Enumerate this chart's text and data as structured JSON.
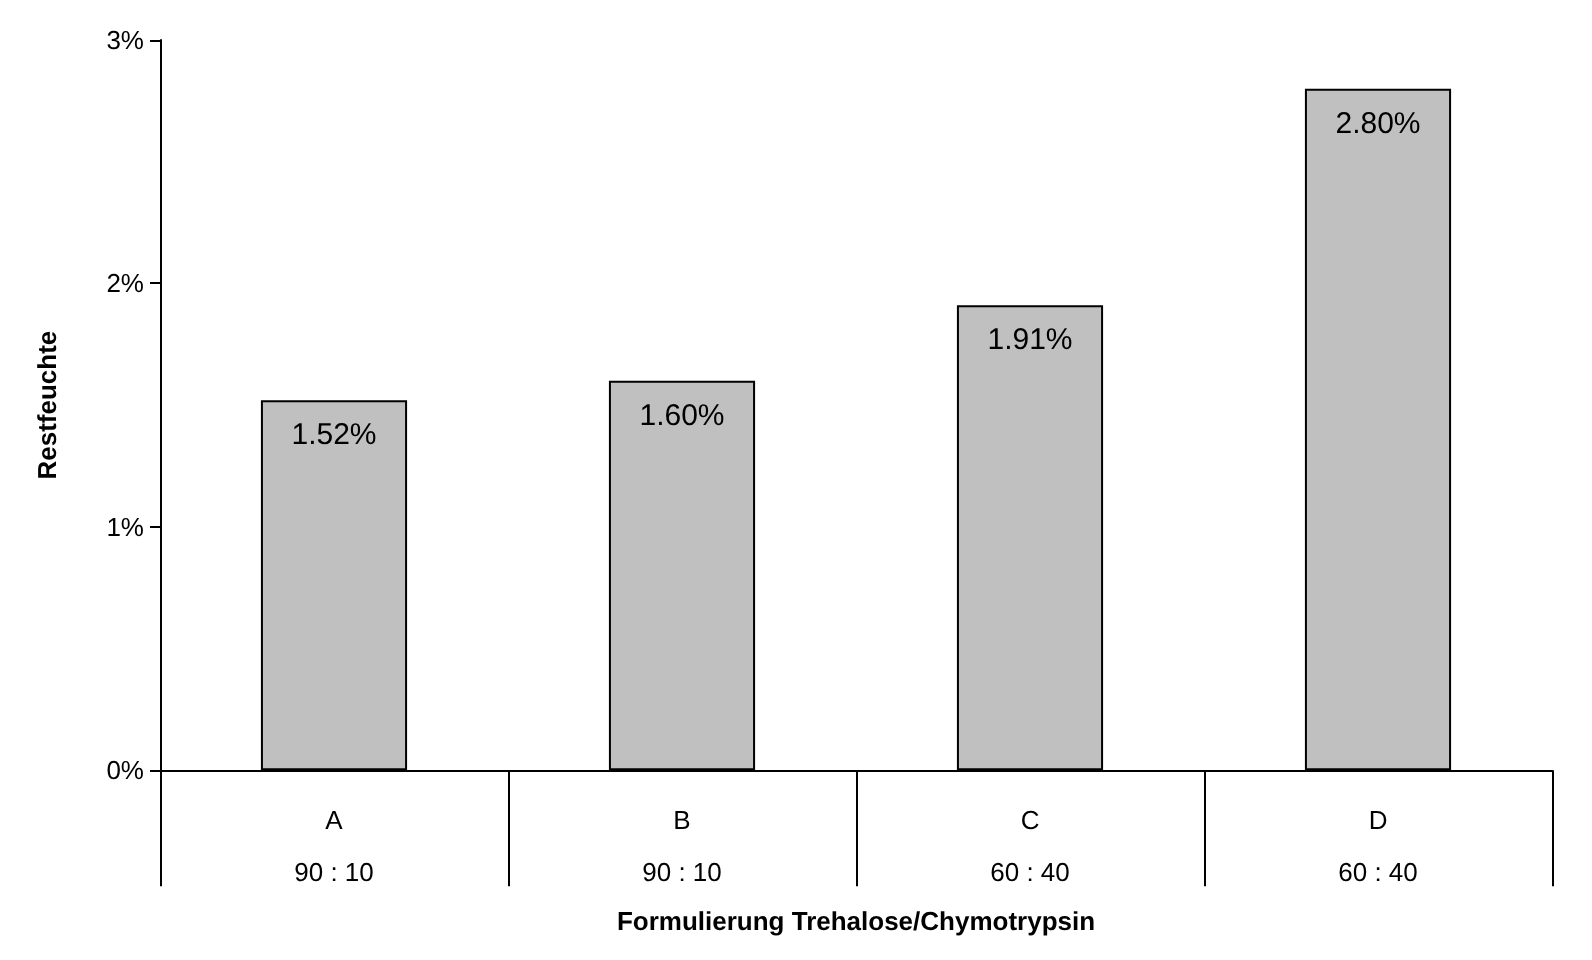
{
  "chart_data": {
    "type": "bar",
    "xlabel": "Formulierung Trehalose/Chymotrypsin",
    "ylabel": "Restfeuchte",
    "categories": [
      "A\n90 : 10",
      "B\n90 : 10",
      "C\n60 : 40",
      "D\n60 : 40"
    ],
    "values": [
      1.52,
      1.6,
      1.91,
      2.8
    ],
    "value_labels": [
      "1.52%",
      "1.60%",
      "1.91%",
      "2.80%"
    ],
    "color": "#c0c0c0",
    "ylim": [
      0,
      3
    ],
    "yticks": [
      {
        "value": 0,
        "label": "0%"
      },
      {
        "value": 1,
        "label": "1%"
      },
      {
        "value": 2,
        "label": "2%"
      },
      {
        "value": 3,
        "label": "3%"
      }
    ],
    "grid": false
  }
}
